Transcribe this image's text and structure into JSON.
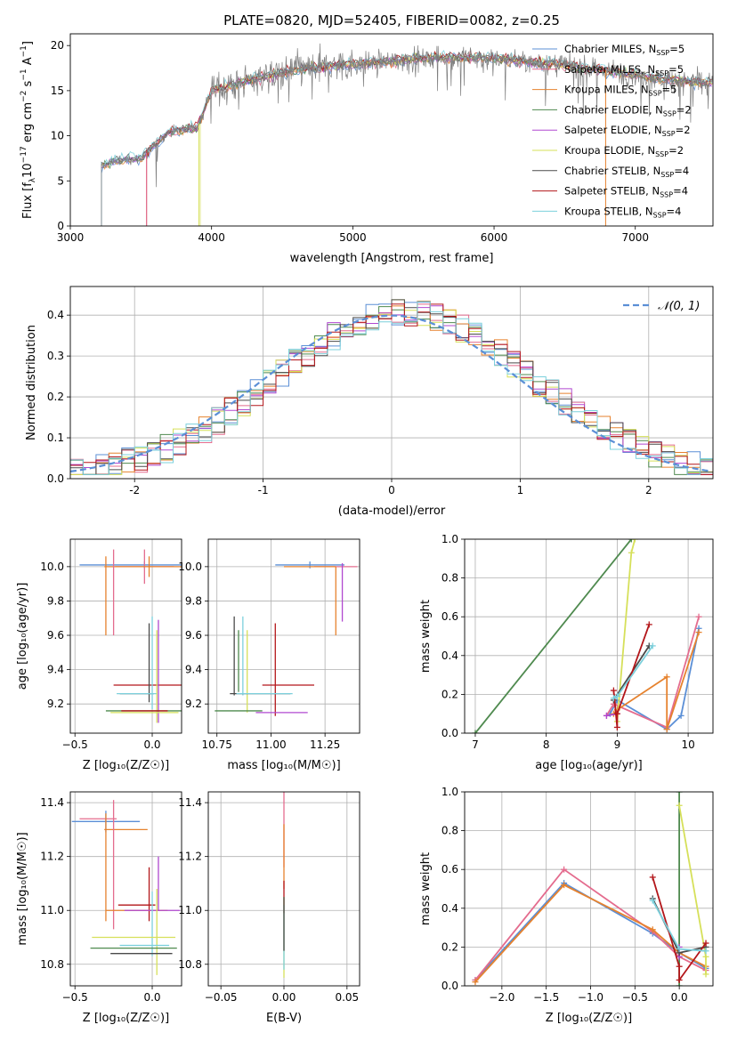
{
  "figure": {
    "title": "PLATE=0820, MJD=52405, FIBERID=0082, z=0.25"
  },
  "colors": {
    "Chabrier MILES": "#5b8fd6",
    "Salpeter MILES": "#e46c8e",
    "Kroupa MILES": "#e6822e",
    "Chabrier ELODIE": "#4f8a4f",
    "Salpeter ELODIE": "#b048d0",
    "Kroupa ELODIE": "#d6e05a",
    "Chabrier STELIB": "#4a4a4a",
    "Salpeter STELIB": "#b3161a",
    "Kroupa STELIB": "#7cd0dc",
    "gaussian": "#5b8fd6",
    "spectrum": "#7f7f7f"
  },
  "chart_data": [
    {
      "id": "spectrum",
      "type": "line",
      "title": "PLATE=0820, MJD=52405, FIBERID=0082, z=0.25",
      "xlabel": "wavelength [Angstrom, rest frame]",
      "ylabel": "Flux [f",
      "ylabel_parts": [
        "Flux [f",
        "λ",
        "10",
        "−17",
        " erg cm",
        "−2",
        " s",
        "−1",
        " A",
        "−1",
        "]"
      ],
      "xlim": [
        3000,
        7550
      ],
      "ylim": [
        0,
        21.3
      ],
      "xticks": [
        3000,
        4000,
        5000,
        6000,
        7000
      ],
      "yticks": [
        0,
        5,
        10,
        15,
        20
      ],
      "grid": false,
      "legend_position": "top-right",
      "legend": [
        {
          "name": "Chabrier MILES",
          "nssp": "5"
        },
        {
          "name": "Salpeter MILES",
          "nssp": "5"
        },
        {
          "name": "Kroupa MILES",
          "nssp": "5"
        },
        {
          "name": "Chabrier ELODIE",
          "nssp": "2"
        },
        {
          "name": "Salpeter ELODIE",
          "nssp": "2"
        },
        {
          "name": "Kroupa ELODIE",
          "nssp": "2"
        },
        {
          "name": "Chabrier STELIB",
          "nssp": "4"
        },
        {
          "name": "Salpeter STELIB",
          "nssp": "4"
        },
        {
          "name": "Kroupa STELIB",
          "nssp": "4"
        }
      ],
      "continuum": [
        [
          3220,
          6.5
        ],
        [
          3300,
          7.2
        ],
        [
          3500,
          7.5
        ],
        [
          3700,
          10.5
        ],
        [
          3900,
          11.0
        ],
        [
          4000,
          15.0
        ],
        [
          4300,
          16.3
        ],
        [
          4600,
          17.3
        ],
        [
          4900,
          17.8
        ],
        [
          5200,
          18.2
        ],
        [
          5600,
          18.7
        ],
        [
          6000,
          18.6
        ],
        [
          6400,
          18.0
        ],
        [
          6800,
          17.2
        ],
        [
          7200,
          16.3
        ],
        [
          7550,
          15.8
        ]
      ],
      "model_starts": [
        [
          3220,
          "Chabrier MILES"
        ],
        [
          3540,
          "Salpeter MILES"
        ],
        [
          3920,
          "Kroupa ELODIE"
        ]
      ]
    },
    {
      "id": "residuals",
      "type": "histogram",
      "xlabel": "(data-model)/error",
      "ylabel": "Normed distribution",
      "xlim": [
        -2.5,
        2.5
      ],
      "ylim": [
        0,
        0.47
      ],
      "xticks": [
        -2,
        -1,
        0,
        1,
        2
      ],
      "yticks": [
        0.0,
        0.1,
        0.2,
        0.3,
        0.4
      ],
      "grid": true,
      "legend_position": "top-right",
      "legend_label": "𝒩(0, 1)",
      "bin_width": 0.1
    },
    {
      "id": "age_vs_Z",
      "type": "errorbar",
      "xlabel": "Z [log₁₀(Z/Z☉)]",
      "ylabel": "age  [log₁₀(age/yr)]",
      "xlim": [
        -0.53,
        0.19
      ],
      "ylim": [
        9.03,
        10.16
      ],
      "xticks": [
        -0.5,
        0.0
      ],
      "xticklabels": [
        "−0.5",
        "0.0"
      ],
      "yticks": [
        9.2,
        9.4,
        9.6,
        9.8,
        10.0
      ],
      "grid": true,
      "points": [
        {
          "series": "Chabrier MILES",
          "x": -0.05,
          "xerr": 0.42,
          "y": 10.01,
          "yerr": 0.02
        },
        {
          "series": "Salpeter MILES",
          "x": -0.05,
          "xerr": 0.19,
          "y": 10.0,
          "yerr": 0.1
        },
        {
          "series": "Kroupa MILES",
          "x": -0.02,
          "xerr": 0.29,
          "y": 10.0,
          "yerr": 0.06
        },
        {
          "series": "Kroupa MILES",
          "x": -0.3,
          "xerr": 0.0,
          "y": 9.83,
          "yerr": 0.23
        },
        {
          "series": "Salpeter MILES",
          "x": -0.25,
          "xerr": 0.0,
          "y": 9.85,
          "yerr": 0.25
        },
        {
          "series": "Salpeter STELIB",
          "x": -0.02,
          "xerr": 0.23,
          "y": 9.31,
          "yerr": 0.0
        },
        {
          "series": "Chabrier STELIB",
          "x": -0.02,
          "xerr": 0.0,
          "y": 9.44,
          "yerr": 0.23
        },
        {
          "series": "Chabrier STELIB",
          "x": -0.1,
          "xerr": 0.11,
          "y": 9.26,
          "yerr": 0.0
        },
        {
          "series": "Kroupa STELIB",
          "x": -0.1,
          "xerr": 0.13,
          "y": 9.26,
          "yerr": 0.0
        },
        {
          "series": "Salpeter ELODIE",
          "x": 0.04,
          "xerr": 0.0,
          "y": 9.39,
          "yerr": 0.3
        },
        {
          "series": "Kroupa ELODIE",
          "x": 0.03,
          "xerr": 0.0,
          "y": 9.36,
          "yerr": 0.27
        },
        {
          "series": "Kroupa STELIB",
          "x": 0.0,
          "xerr": 0.0,
          "y": 9.44,
          "yerr": 0.27
        },
        {
          "series": "Chabrier ELODIE",
          "x": 0.0,
          "xerr": 0.3,
          "y": 9.16,
          "yerr": 0.0
        },
        {
          "series": "Kroupa ELODIE",
          "x": -0.05,
          "xerr": 0.22,
          "y": 9.15,
          "yerr": 0.0
        },
        {
          "series": "Salpeter STELIB",
          "x": -0.05,
          "xerr": 0.15,
          "y": 9.16,
          "yerr": 0.0
        }
      ]
    },
    {
      "id": "age_vs_mass",
      "type": "errorbar",
      "xlabel": "mass [log₁₀(M/M☉)]",
      "xlim": [
        10.71,
        11.41
      ],
      "ylim": [
        9.03,
        10.16
      ],
      "xticks": [
        10.75,
        11.0,
        11.25
      ],
      "xticklabels": [
        "10.75",
        "11.00",
        "11.25"
      ],
      "yticks": [
        9.2,
        9.4,
        9.6,
        9.8,
        10.0
      ],
      "grid": true,
      "points": [
        {
          "series": "Chabrier MILES",
          "x": 11.18,
          "xerr": 0.16,
          "y": 10.01,
          "yerr": 0.02
        },
        {
          "series": "Salpeter MILES",
          "x": 11.3,
          "xerr": 0.1,
          "y": 10.0,
          "yerr": 0.0
        },
        {
          "series": "Kroupa MILES",
          "x": 11.18,
          "xerr": 0.12,
          "y": 10.0,
          "yerr": 0.0
        },
        {
          "series": "Kroupa MILES",
          "x": 11.3,
          "xerr": 0.0,
          "y": 9.8,
          "yerr": 0.2
        },
        {
          "series": "Salpeter ELODIE",
          "x": 11.33,
          "xerr": 0.0,
          "y": 9.85,
          "yerr": 0.17
        },
        {
          "series": "Chabrier STELIB",
          "x": 10.83,
          "xerr": 0.0,
          "y": 9.48,
          "yerr": 0.23
        },
        {
          "series": "Kroupa STELIB",
          "x": 10.87,
          "xerr": 0.0,
          "y": 9.48,
          "yerr": 0.23
        },
        {
          "series": "Chabrier ELODIE",
          "x": 10.85,
          "xerr": 0.0,
          "y": 9.45,
          "yerr": 0.18
        },
        {
          "series": "Kroupa ELODIE",
          "x": 10.89,
          "xerr": 0.0,
          "y": 9.39,
          "yerr": 0.24
        },
        {
          "series": "Salpeter STELIB",
          "x": 11.02,
          "xerr": 0.0,
          "y": 9.4,
          "yerr": 0.27
        },
        {
          "series": "Salpeter STELIB",
          "x": 11.08,
          "xerr": 0.12,
          "y": 9.31,
          "yerr": 0.0
        },
        {
          "series": "Chabrier STELIB",
          "x": 10.95,
          "xerr": 0.14,
          "y": 9.26,
          "yerr": 0.0
        },
        {
          "series": "Kroupa STELIB",
          "x": 10.97,
          "xerr": 0.13,
          "y": 9.26,
          "yerr": 0.0
        },
        {
          "series": "Chabrier ELODIE",
          "x": 10.85,
          "xerr": 0.11,
          "y": 9.16,
          "yerr": 0.0
        },
        {
          "series": "Salpeter ELODIE",
          "x": 11.05,
          "xerr": 0.12,
          "y": 9.15,
          "yerr": 0.0
        }
      ]
    },
    {
      "id": "weight_vs_age",
      "type": "line",
      "xlabel": "age  [log₁₀(age/yr)]",
      "ylabel": "mass weight",
      "xlim": [
        6.85,
        10.35
      ],
      "ylim": [
        0,
        1
      ],
      "xticks": [
        7,
        8,
        9,
        10
      ],
      "yticks": [
        0.0,
        0.2,
        0.4,
        0.6,
        0.8,
        1.0
      ],
      "grid": true,
      "series": [
        {
          "name": "Chabrier MILES",
          "x": [
            8.9,
            9.0,
            9.7,
            9.9,
            10.15
          ],
          "y": [
            0.1,
            0.17,
            0.02,
            0.09,
            0.54
          ]
        },
        {
          "name": "Salpeter MILES",
          "x": [
            8.85,
            8.95,
            9.7,
            10.15
          ],
          "y": [
            0.09,
            0.15,
            0.03,
            0.6
          ]
        },
        {
          "name": "Kroupa MILES",
          "x": [
            8.95,
            9.0,
            9.7,
            9.7,
            10.15
          ],
          "y": [
            0.1,
            0.12,
            0.29,
            0.02,
            0.52
          ]
        },
        {
          "name": "Chabrier ELODIE",
          "x": [
            7.0,
            9.2
          ],
          "y": [
            0.0,
            1.0
          ]
        },
        {
          "name": "Salpeter ELODIE",
          "x": [
            8.85,
            9.0
          ],
          "y": [
            0.09,
            0.1
          ]
        },
        {
          "name": "Kroupa ELODIE",
          "x": [
            9.0,
            9.2,
            9.25
          ],
          "y": [
            0.06,
            0.93,
            1.0
          ]
        },
        {
          "name": "Chabrier STELIB",
          "x": [
            8.95,
            9.45
          ],
          "y": [
            0.17,
            0.45
          ]
        },
        {
          "name": "Salpeter STELIB",
          "x": [
            8.95,
            9.0,
            9.0,
            9.45
          ],
          "y": [
            0.22,
            0.03,
            0.1,
            0.56
          ]
        },
        {
          "name": "Kroupa STELIB",
          "x": [
            8.95,
            9.0,
            9.5
          ],
          "y": [
            0.18,
            0.19,
            0.45
          ]
        }
      ]
    },
    {
      "id": "mass_vs_Z",
      "type": "errorbar",
      "xlabel": "Z [log₁₀(Z/Z☉)]",
      "ylabel": "mass [log₁₀(M/M☉)]",
      "xlim": [
        -0.53,
        0.19
      ],
      "ylim": [
        10.72,
        11.44
      ],
      "xticks": [
        -0.5,
        0.0
      ],
      "xticklabels": [
        "−0.5",
        "0.0"
      ],
      "yticks": [
        10.8,
        11.0,
        11.2,
        11.4
      ],
      "grid": true,
      "points": [
        {
          "series": "Chabrier MILES",
          "x": -0.3,
          "xerr": 0.22,
          "y": 11.33,
          "yerr": 0.04
        },
        {
          "series": "Salpeter MILES",
          "x": -0.35,
          "xerr": 0.12,
          "y": 11.34,
          "yerr": 0.0
        },
        {
          "series": "Kroupa MILES",
          "x": -0.3,
          "xerr": 0.0,
          "y": 11.16,
          "yerr": 0.2
        },
        {
          "series": "Kroupa MILES",
          "x": -0.17,
          "xerr": 0.14,
          "y": 11.3,
          "yerr": 0.0
        },
        {
          "series": "Salpeter MILES",
          "x": -0.25,
          "xerr": 0.0,
          "y": 11.17,
          "yerr": 0.24
        },
        {
          "series": "Salpeter STELIB",
          "x": -0.02,
          "xerr": 0.0,
          "y": 11.06,
          "yerr": 0.1
        },
        {
          "series": "Salpeter STELIB",
          "x": -0.1,
          "xerr": 0.12,
          "y": 11.02,
          "yerr": 0.0
        },
        {
          "series": "Salpeter ELODIE",
          "x": 0.04,
          "xerr": 0.0,
          "y": 11.1,
          "yerr": 0.1
        },
        {
          "series": "Kroupa MILES",
          "x": -0.1,
          "xerr": 0.2,
          "y": 11.0,
          "yerr": 0.0
        },
        {
          "series": "Salpeter ELODIE",
          "x": 0.0,
          "xerr": 0.18,
          "y": 11.0,
          "yerr": 0.0
        },
        {
          "series": "Kroupa ELODIE",
          "x": 0.03,
          "xerr": 0.0,
          "y": 10.92,
          "yerr": 0.16
        },
        {
          "series": "Kroupa STELIB",
          "x": 0.0,
          "xerr": 0.0,
          "y": 10.95,
          "yerr": 0.12
        },
        {
          "series": "Kroupa ELODIE",
          "x": -0.12,
          "xerr": 0.27,
          "y": 10.9,
          "yerr": 0.0
        },
        {
          "series": "Kroupa STELIB",
          "x": -0.05,
          "xerr": 0.16,
          "y": 10.87,
          "yerr": 0.0
        },
        {
          "series": "Chabrier ELODIE",
          "x": -0.12,
          "xerr": 0.28,
          "y": 10.86,
          "yerr": 0.0
        },
        {
          "series": "Chabrier STELIB",
          "x": -0.07,
          "xerr": 0.2,
          "y": 10.84,
          "yerr": 0.0
        }
      ]
    },
    {
      "id": "mass_vs_ebv",
      "type": "errorbar",
      "xlabel": "E(B-V)",
      "xlim": [
        -0.06,
        0.06
      ],
      "ylim": [
        10.72,
        11.44
      ],
      "xticks": [
        -0.05,
        0.0,
        0.05
      ],
      "xticklabels": [
        "−0.05",
        "0.00",
        "0.05"
      ],
      "yticks": [
        10.8,
        11.0,
        11.2,
        11.4
      ],
      "grid": true,
      "points": [
        {
          "series": "Salpeter MILES",
          "x": 0.0,
          "xerr": 0.0,
          "y": 11.3,
          "yerr": 0.14
        },
        {
          "series": "Kroupa MILES",
          "x": 0.0,
          "xerr": 0.0,
          "y": 11.2,
          "yerr": 0.12
        },
        {
          "series": "Salpeter STELIB",
          "x": 0.0,
          "xerr": 0.0,
          "y": 11.05,
          "yerr": 0.06
        },
        {
          "series": "Kroupa ELODIE",
          "x": 0.0,
          "xerr": 0.0,
          "y": 10.9,
          "yerr": 0.15
        },
        {
          "series": "Kroupa STELIB",
          "x": 0.0,
          "xerr": 0.0,
          "y": 10.9,
          "yerr": 0.12
        },
        {
          "series": "Chabrier STELIB",
          "x": 0.0,
          "xerr": 0.0,
          "y": 10.95,
          "yerr": 0.1
        }
      ]
    },
    {
      "id": "weight_vs_Z",
      "type": "line",
      "xlabel": "Z [log₁₀(Z/Z☉)]",
      "ylabel": "mass weight",
      "xlim": [
        -2.42,
        0.38
      ],
      "ylim": [
        0,
        1
      ],
      "xticks": [
        -2.0,
        -1.5,
        -1.0,
        -0.5,
        0.0
      ],
      "xticklabels": [
        "−2.0",
        "−1.5",
        "−1.0",
        "−0.5",
        "0.0"
      ],
      "yticks": [
        0.0,
        0.2,
        0.4,
        0.6,
        0.8,
        1.0
      ],
      "grid": true,
      "series": [
        {
          "name": "Chabrier MILES",
          "x": [
            -2.3,
            -1.3,
            -0.3,
            0.0,
            0.3
          ],
          "y": [
            0.03,
            0.53,
            0.27,
            0.17,
            0.09
          ]
        },
        {
          "name": "Salpeter MILES",
          "x": [
            -2.3,
            -1.3,
            -0.3,
            0.0,
            0.3
          ],
          "y": [
            0.03,
            0.6,
            0.28,
            0.15,
            0.08
          ]
        },
        {
          "name": "Kroupa MILES",
          "x": [
            -2.3,
            -1.3,
            -0.3,
            0.0,
            0.3
          ],
          "y": [
            0.02,
            0.52,
            0.29,
            0.17,
            0.1
          ]
        },
        {
          "name": "Chabrier ELODIE",
          "x": [
            0.0,
            0.0
          ],
          "y": [
            0.0,
            1.0
          ]
        },
        {
          "name": "Salpeter ELODIE",
          "x": [
            0.0,
            0.0
          ],
          "y": [
            0.15,
            0.2
          ]
        },
        {
          "name": "Kroupa ELODIE",
          "x": [
            0.0,
            0.3,
            0.3
          ],
          "y": [
            0.93,
            0.15,
            0.06
          ]
        },
        {
          "name": "Chabrier STELIB",
          "x": [
            -0.3,
            0.0,
            0.3
          ],
          "y": [
            0.45,
            0.17,
            0.2
          ]
        },
        {
          "name": "Salpeter STELIB",
          "x": [
            -0.3,
            0.0,
            0.0,
            0.3
          ],
          "y": [
            0.56,
            0.1,
            0.03,
            0.22
          ]
        },
        {
          "name": "Kroupa STELIB",
          "x": [
            -0.3,
            0.0,
            0.3
          ],
          "y": [
            0.44,
            0.19,
            0.18
          ]
        }
      ]
    }
  ]
}
